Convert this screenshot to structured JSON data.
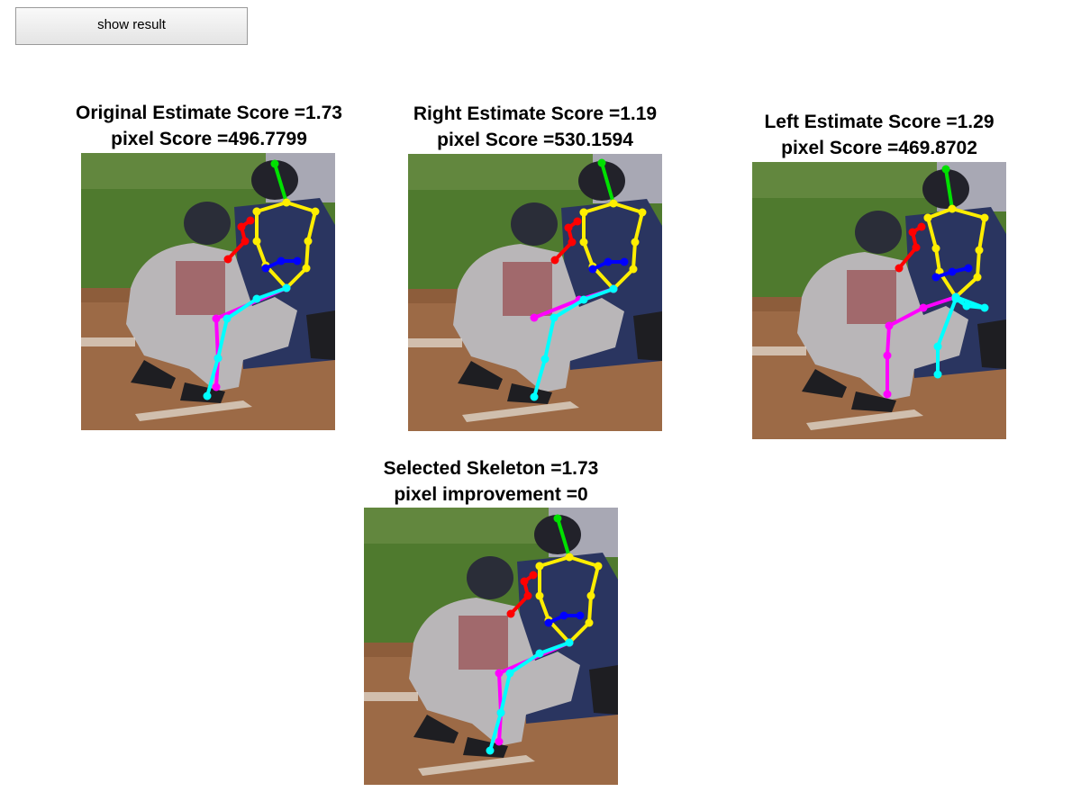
{
  "button": {
    "label": "show result"
  },
  "panels": [
    {
      "id": "original",
      "title_line1": "Original Estimate Score =1.73",
      "title_line2": "pixel Score =496.7799"
    },
    {
      "id": "right",
      "title_line1": "Right Estimate Score =1.19",
      "title_line2": "pixel Score =530.1594"
    },
    {
      "id": "left",
      "title_line1": "Left Estimate Score =1.29",
      "title_line2": "pixel Score =469.8702"
    },
    {
      "id": "selected",
      "title_line1": "Selected Skeleton =1.73",
      "title_line2": "pixel improvement =0"
    }
  ],
  "colors": {
    "head": "#00e000",
    "torso": "#ffee00",
    "right_arm": "#ff0000",
    "left_arm": "#0000ff",
    "right_leg": "#ff00ff",
    "left_leg": "#00ffff",
    "grass": "#4f7a2e",
    "dirt": "#9c6a46"
  }
}
